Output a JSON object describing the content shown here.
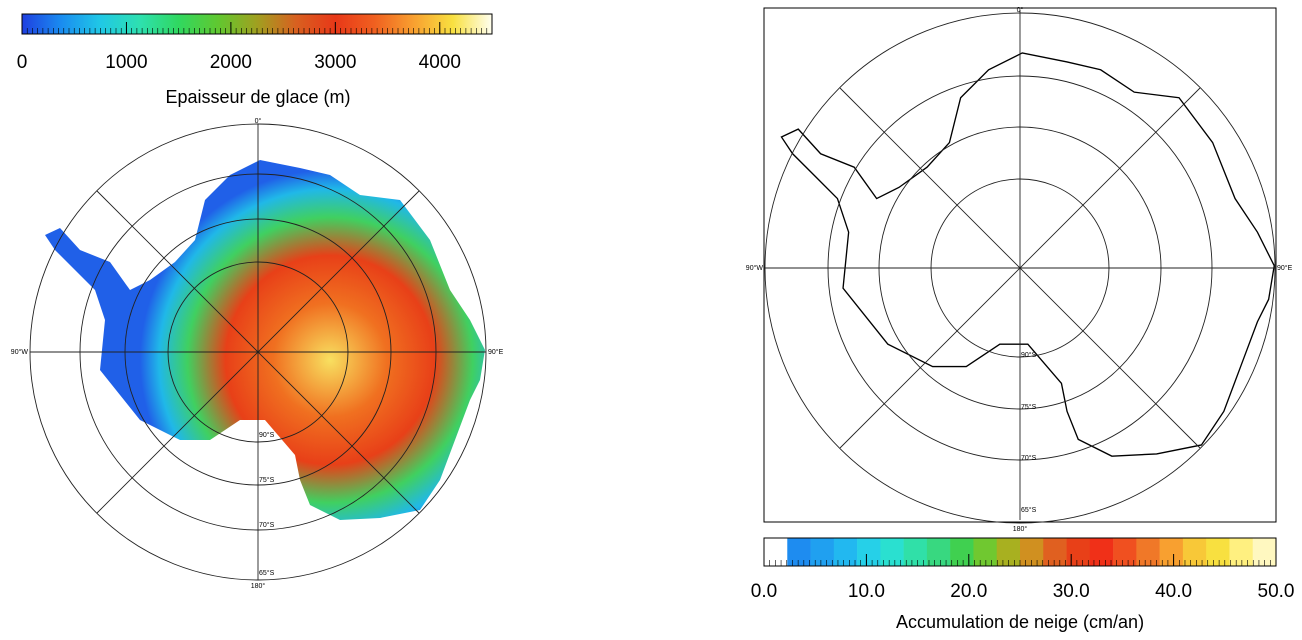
{
  "left_map": {
    "colorbar": {
      "title": "Epaisseur de glace (m)",
      "lim": [
        0,
        4500
      ],
      "ticks": [
        0,
        1000,
        2000,
        3000,
        4000
      ],
      "colors": [
        "#1f3fe0",
        "#1a8cf0",
        "#20c8e6",
        "#2ee0b0",
        "#30d860",
        "#60c830",
        "#a0a020",
        "#d86020",
        "#e83818",
        "#f06020",
        "#f8a030",
        "#f8e040",
        "#fffff0"
      ]
    },
    "labels": {
      "north": "0°",
      "south": "180°",
      "west": "90°W",
      "east": "90°E"
    },
    "lat_labels": [
      "90°S",
      "75°S",
      "70°S",
      "65°S"
    ]
  },
  "right_map": {
    "colorbar": {
      "title": "Accumulation de neige (cm/an)",
      "lim": [
        0,
        50
      ],
      "ticks": [
        {
          "value": 0,
          "label": "0.0"
        },
        {
          "value": 10,
          "label": "10.0"
        },
        {
          "value": 20,
          "label": "20.0"
        },
        {
          "value": 30,
          "label": "30.0"
        },
        {
          "value": 40,
          "label": "40.0"
        },
        {
          "value": 50,
          "label": "50.0"
        }
      ],
      "colors": [
        "#ffffff",
        "#1e8cf0",
        "#20a0f0",
        "#22b8f0",
        "#26d0e8",
        "#2ae0d0",
        "#30e0a8",
        "#38d880",
        "#40d050",
        "#70c830",
        "#a8b020",
        "#d09020",
        "#e06020",
        "#e84018",
        "#f03018",
        "#f05020",
        "#f07828",
        "#f8a030",
        "#f8c838",
        "#f8e040",
        "#fff080",
        "#fff8c0"
      ]
    },
    "labels": {
      "north": "0°",
      "south": "180°",
      "west": "90°W",
      "east": "90°E"
    },
    "lat_labels": [
      "90°S",
      "75°S",
      "70°S",
      "65°S"
    ]
  }
}
